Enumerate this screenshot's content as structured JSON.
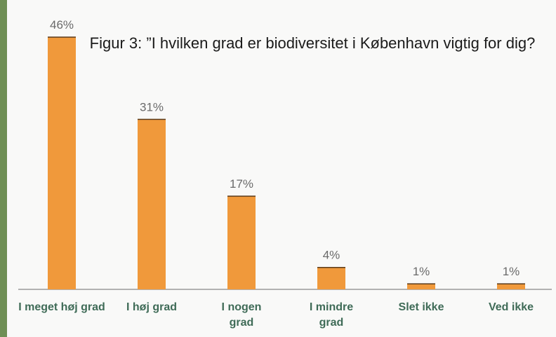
{
  "chart_data": {
    "type": "bar",
    "title": "Figur 3: ”I hvilken grad er biodiversitet i København vigtig for dig?",
    "categories": [
      "I meget høj grad",
      "I høj grad",
      "I nogen grad",
      "I mindre grad",
      "Slet ikke",
      "Ved ikke"
    ],
    "values": [
      46,
      31,
      17,
      4,
      1,
      1
    ],
    "value_labels": [
      "46%",
      "31%",
      "17%",
      "4%",
      "1%",
      "1%"
    ],
    "color": "#f0993b"
  }
}
